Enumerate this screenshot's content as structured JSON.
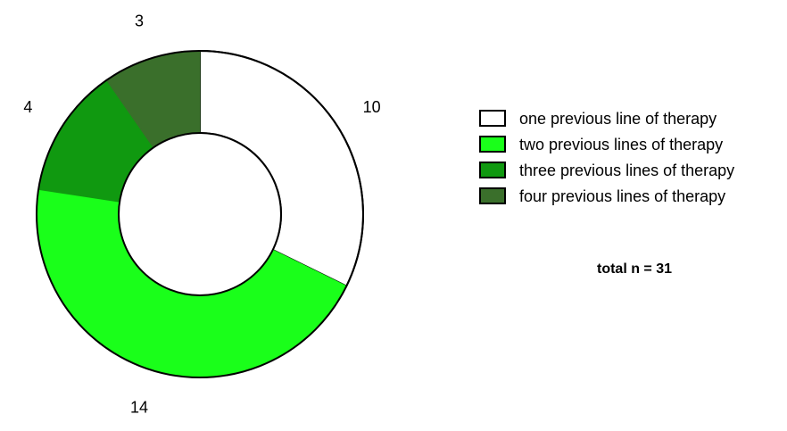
{
  "chart_data": {
    "type": "pie",
    "subtype": "donut",
    "categories": [
      "one previous line of therapy",
      "two previous lines of therapy",
      "three previous lines of therapy",
      "four previous lines of therapy"
    ],
    "values": [
      10,
      14,
      4,
      3
    ],
    "value_labels": [
      "10",
      "14",
      "4",
      "3"
    ],
    "colors": [
      "#ffffff",
      "#1aff1a",
      "#109910",
      "#3a6f2b"
    ],
    "start_angle_deg": 0,
    "direction": "clockwise",
    "legend_position": "right",
    "annotation": "total n = 31"
  }
}
